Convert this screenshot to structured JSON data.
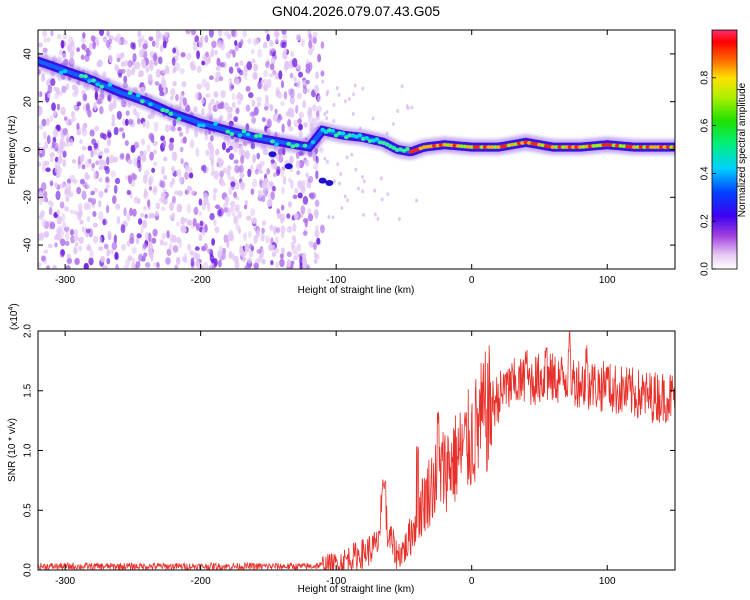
{
  "title": "GN04.2026.079.07.43.G05",
  "chart_data": [
    {
      "type": "heatmap",
      "xlabel": "Height of straight line (km)",
      "ylabel": "Frequency (Hz)",
      "xlim": [
        -320,
        150
      ],
      "ylim": [
        -50,
        50
      ],
      "x_ticks": [
        -300,
        -200,
        -100,
        0,
        100
      ],
      "x_tick_labels": [
        "-300",
        "-200",
        "-100",
        "0",
        "100"
      ],
      "y_ticks": [
        -40,
        -20,
        0,
        20,
        40
      ],
      "y_tick_labels": [
        "-40",
        "-20",
        "0",
        "20",
        "40"
      ],
      "trace_centerline": [
        {
          "x": -320,
          "y": 37
        },
        {
          "x": -300,
          "y": 33
        },
        {
          "x": -280,
          "y": 29
        },
        {
          "x": -260,
          "y": 24
        },
        {
          "x": -240,
          "y": 20
        },
        {
          "x": -220,
          "y": 15
        },
        {
          "x": -200,
          "y": 11
        },
        {
          "x": -180,
          "y": 8
        },
        {
          "x": -160,
          "y": 5
        },
        {
          "x": -140,
          "y": 3
        },
        {
          "x": -120,
          "y": 1
        },
        {
          "x": -110,
          "y": 8
        },
        {
          "x": -95,
          "y": 6
        },
        {
          "x": -80,
          "y": 5
        },
        {
          "x": -65,
          "y": 3
        },
        {
          "x": -55,
          "y": 0
        },
        {
          "x": -45,
          "y": -1
        },
        {
          "x": -35,
          "y": 1
        },
        {
          "x": -20,
          "y": 2
        },
        {
          "x": 0,
          "y": 1
        },
        {
          "x": 20,
          "y": 1
        },
        {
          "x": 40,
          "y": 3
        },
        {
          "x": 60,
          "y": 1
        },
        {
          "x": 80,
          "y": 1
        },
        {
          "x": 100,
          "y": 2
        },
        {
          "x": 120,
          "y": 1
        },
        {
          "x": 150,
          "y": 1
        }
      ],
      "colorbar": {
        "label": "Normalized spectral amplitude",
        "range": [
          0,
          1
        ],
        "ticks": [
          0.0,
          0.2,
          0.4,
          0.6,
          0.8
        ],
        "tick_labels": [
          "0.0",
          "0.2",
          "0.4",
          "0.6",
          "0.8"
        ]
      }
    },
    {
      "type": "line",
      "xlabel": "Height of straight line (km)",
      "ylabel": "SNR (10 * v/v)",
      "y_scale_label": "(x10",
      "y_scale_exponent": "4",
      "y_scale_close": ")",
      "xlim": [
        -320,
        150
      ],
      "ylim": [
        0,
        2.0
      ],
      "x_ticks": [
        -300,
        -200,
        -100,
        0,
        100
      ],
      "x_tick_labels": [
        "-300",
        "-200",
        "-100",
        "0",
        "100"
      ],
      "y_ticks": [
        0,
        0.5,
        1.0,
        1.5,
        2.0
      ],
      "y_tick_labels": [
        "0.0",
        "0.5",
        "1.0",
        "1.5",
        "2.0"
      ],
      "color": "#e8302a",
      "series": [
        {
          "envelope": [
            {
              "x": -320,
              "y": 0.03
            },
            {
              "x": -200,
              "y": 0.03
            },
            {
              "x": -120,
              "y": 0.03
            },
            {
              "x": -100,
              "y": 0.05
            },
            {
              "x": -90,
              "y": 0.1
            },
            {
              "x": -80,
              "y": 0.14
            },
            {
              "x": -70,
              "y": 0.2
            },
            {
              "x": -65,
              "y": 0.55
            },
            {
              "x": -62,
              "y": 0.3
            },
            {
              "x": -55,
              "y": 0.12
            },
            {
              "x": -48,
              "y": 0.2
            },
            {
              "x": -40,
              "y": 0.45
            },
            {
              "x": -30,
              "y": 0.7
            },
            {
              "x": -20,
              "y": 0.85
            },
            {
              "x": -10,
              "y": 0.95
            },
            {
              "x": 0,
              "y": 1.1
            },
            {
              "x": 10,
              "y": 1.3
            },
            {
              "x": 20,
              "y": 1.45
            },
            {
              "x": 30,
              "y": 1.55
            },
            {
              "x": 50,
              "y": 1.6
            },
            {
              "x": 70,
              "y": 1.6
            },
            {
              "x": 90,
              "y": 1.55
            },
            {
              "x": 110,
              "y": 1.5
            },
            {
              "x": 130,
              "y": 1.45
            },
            {
              "x": 150,
              "y": 1.45
            }
          ],
          "spikes": [
            {
              "x": -64,
              "y": 0.75
            },
            {
              "x": -40,
              "y": 1.05
            },
            {
              "x": -25,
              "y": 1.35
            },
            {
              "x": 25,
              "y": 1.7
            },
            {
              "x": 40,
              "y": 1.85
            },
            {
              "x": 55,
              "y": 1.95
            },
            {
              "x": 72,
              "y": 2.0
            },
            {
              "x": 85,
              "y": 1.9
            },
            {
              "x": 100,
              "y": 1.75
            }
          ]
        }
      ]
    }
  ]
}
